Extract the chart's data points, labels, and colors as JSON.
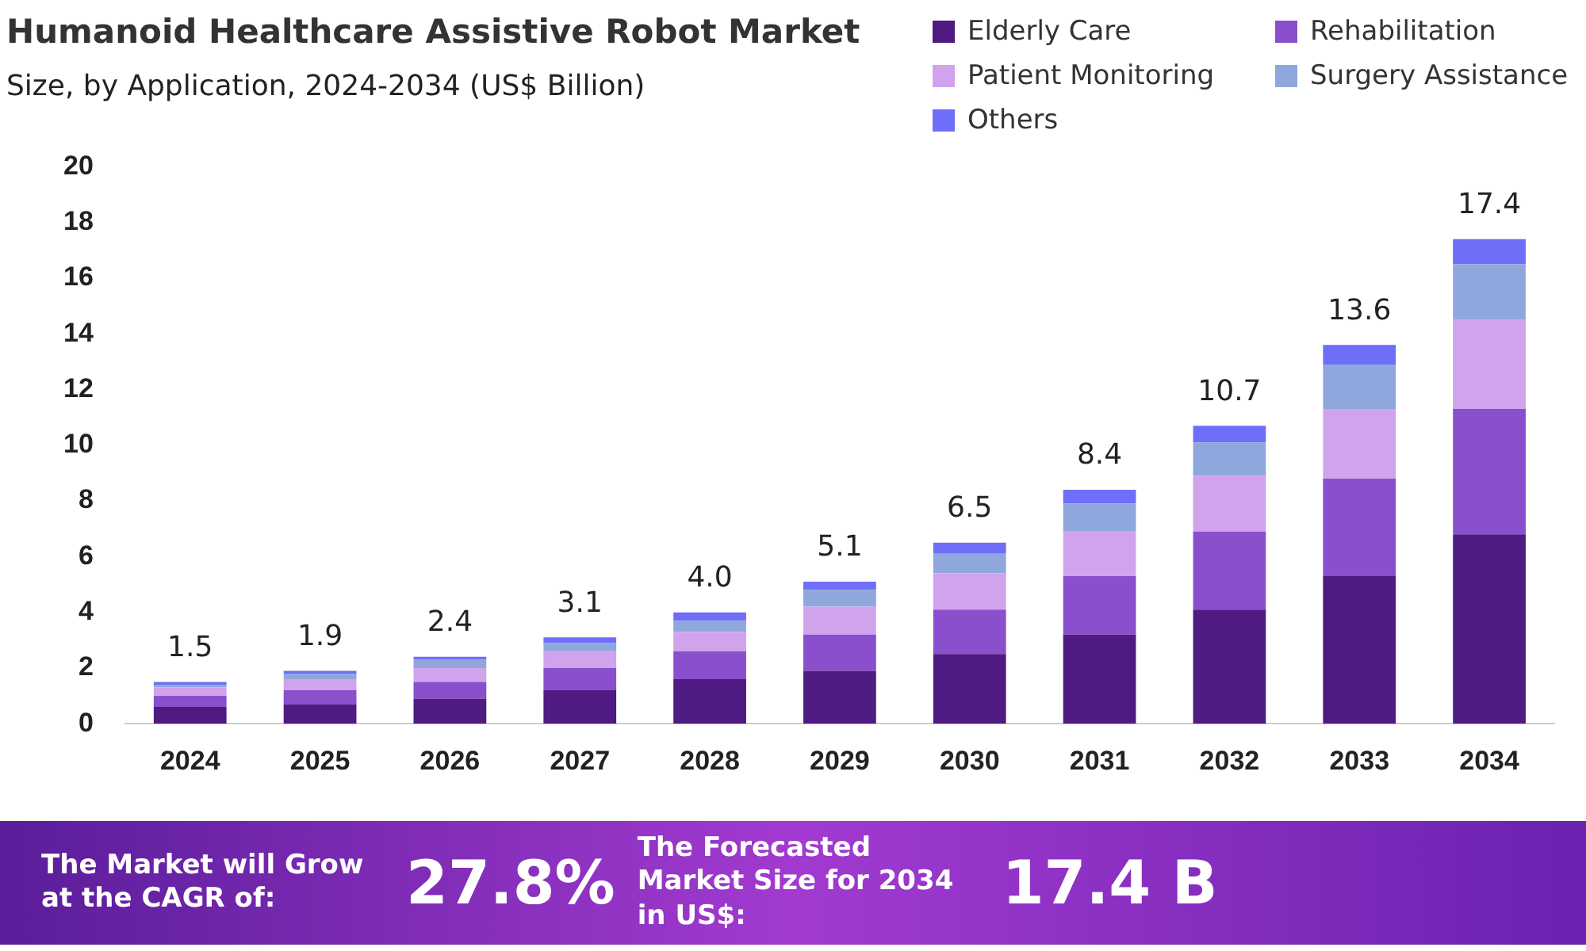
{
  "chart_data": {
    "type": "bar",
    "stacked": true,
    "title": "Humanoid Healthcare Assistive Robot Market",
    "subtitle": "Size, by Application, 2024-2034 (US$ Billion)",
    "categories": [
      "2024",
      "2025",
      "2026",
      "2027",
      "2028",
      "2029",
      "2030",
      "2031",
      "2032",
      "2033",
      "2034"
    ],
    "series": [
      {
        "name": "Elderly Care",
        "color": "#4f1a82",
        "values": [
          0.6,
          0.7,
          0.9,
          1.2,
          1.6,
          1.9,
          2.5,
          3.2,
          4.1,
          5.3,
          6.8
        ]
      },
      {
        "name": "Rehabilitation",
        "color": "#8a4fcc",
        "values": [
          0.4,
          0.5,
          0.6,
          0.8,
          1.0,
          1.3,
          1.6,
          2.1,
          2.8,
          3.5,
          4.5
        ]
      },
      {
        "name": "Patient Monitoring",
        "color": "#d1a3ec",
        "values": [
          0.3,
          0.4,
          0.5,
          0.6,
          0.7,
          1.0,
          1.3,
          1.6,
          2.0,
          2.5,
          3.2
        ]
      },
      {
        "name": "Surgery Assistance",
        "color": "#8fa7dc",
        "values": [
          0.1,
          0.2,
          0.3,
          0.3,
          0.4,
          0.6,
          0.7,
          1.0,
          1.2,
          1.6,
          2.0
        ]
      },
      {
        "name": "Others",
        "color": "#6f6ef8",
        "values": [
          0.1,
          0.1,
          0.1,
          0.2,
          0.3,
          0.3,
          0.4,
          0.5,
          0.6,
          0.7,
          0.9
        ]
      }
    ],
    "totals": [
      "1.5",
      "1.9",
      "2.4",
      "3.1",
      "4.0",
      "5.1",
      "6.5",
      "8.4",
      "10.7",
      "13.6",
      "17.4"
    ],
    "ylim": [
      0,
      20
    ],
    "yticks": [
      0,
      2,
      4,
      6,
      8,
      10,
      12,
      14,
      16,
      18,
      20
    ],
    "grid": false,
    "legend": "top right",
    "annotations": [
      "The Market will Grow at the CAGR of:",
      "27.8%",
      "The Forecasted Market Size for 2034 in US$:",
      "17.4 B"
    ]
  }
}
